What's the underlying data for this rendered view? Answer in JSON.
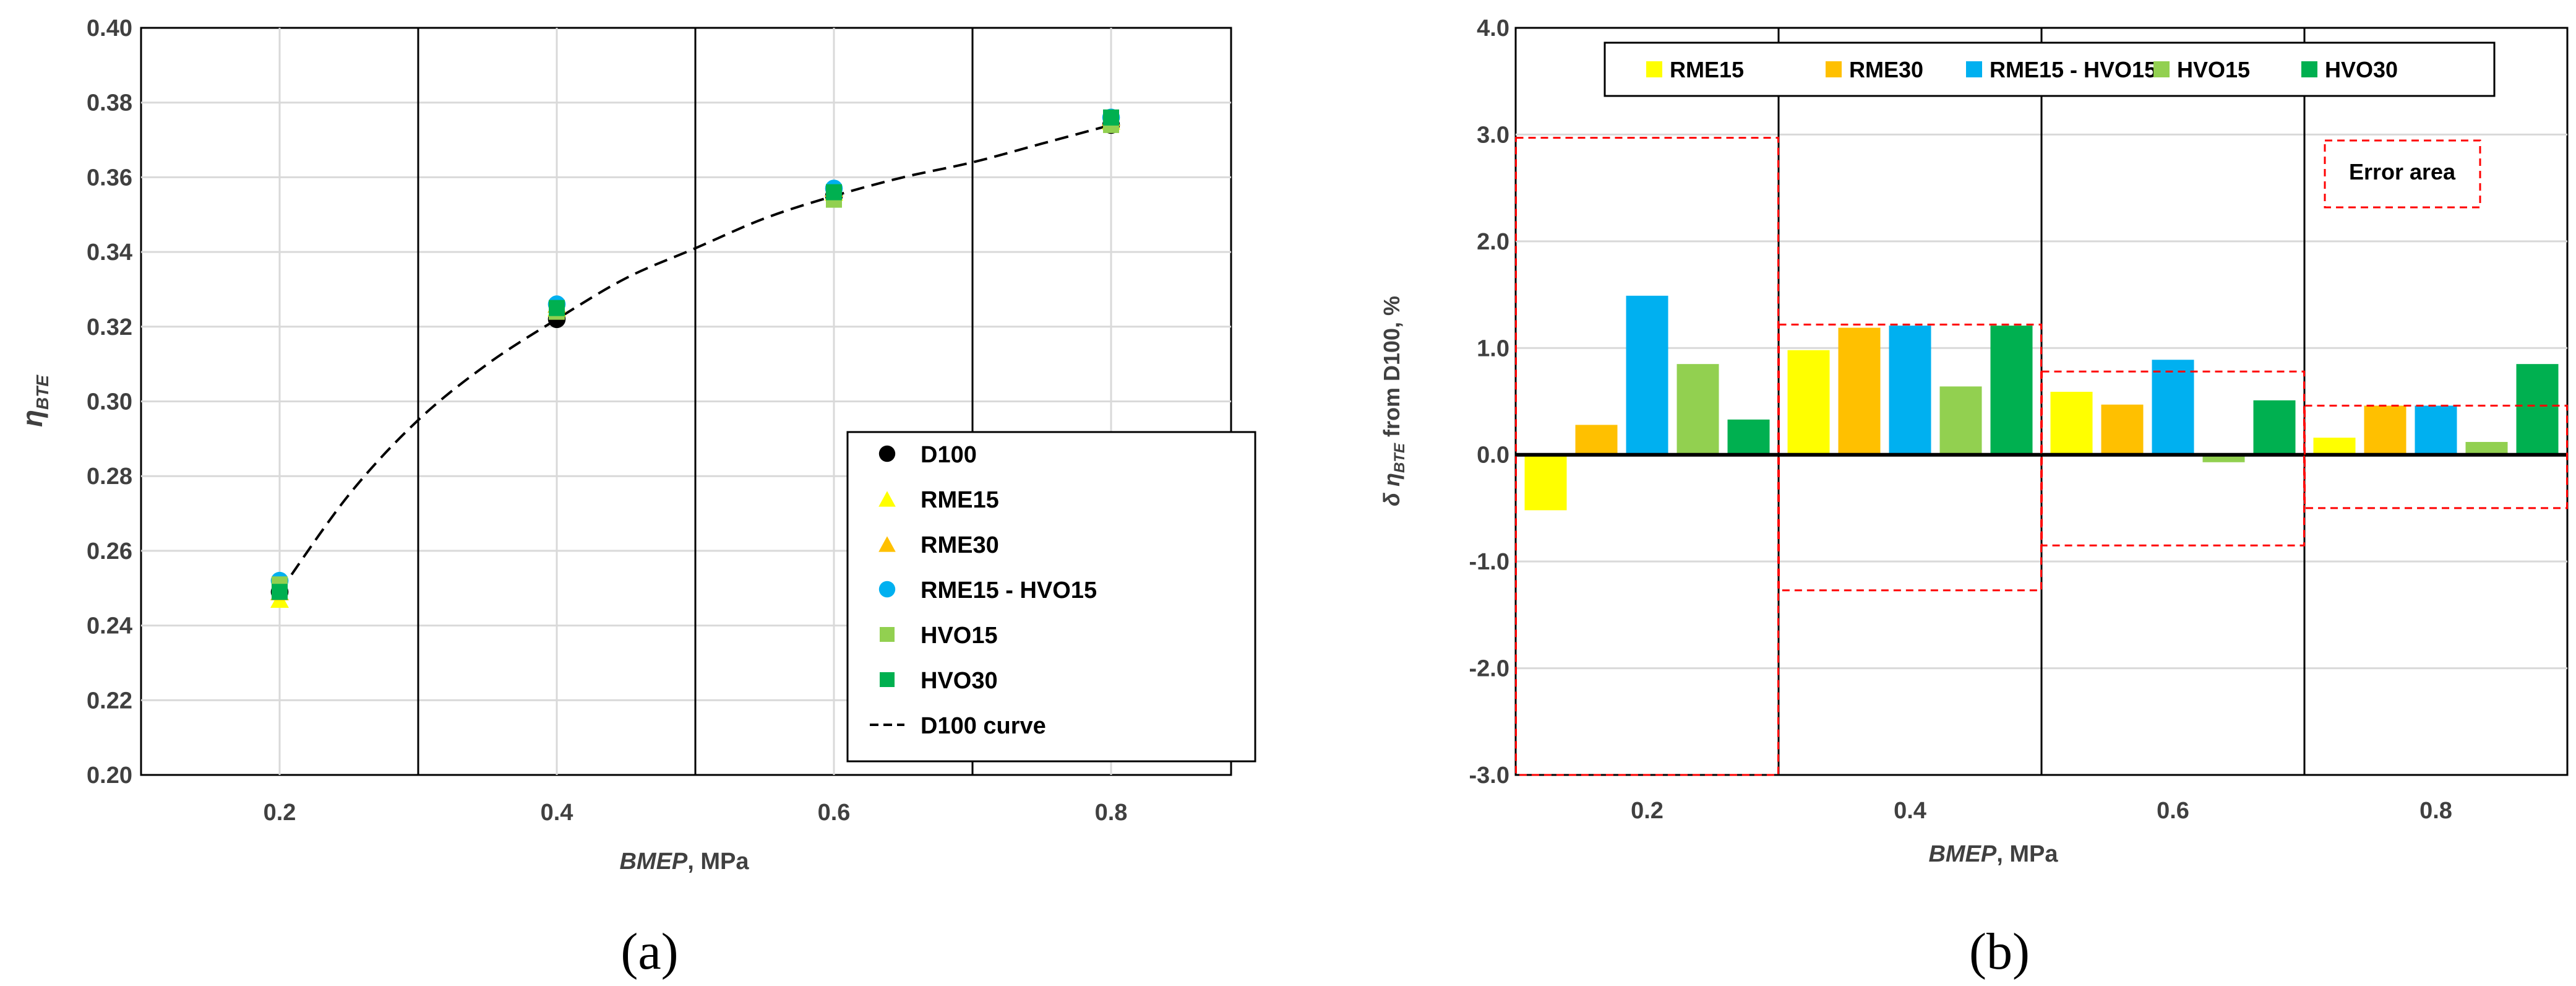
{
  "chart_data": [
    {
      "panel": "(a)",
      "type": "scatter",
      "xlabel_italic": "BMEP",
      "xlabel_rest": ", MPa",
      "ylabel_sym": "η",
      "ylabel_sub": "BTE",
      "xlim": [
        0.1,
        0.8866
      ],
      "ylim": [
        0.2,
        0.4
      ],
      "x_ticks": [
        "0.2",
        "0.4",
        "0.6",
        "0.8"
      ],
      "y_ticks": [
        "0.20",
        "0.22",
        "0.24",
        "0.26",
        "0.28",
        "0.30",
        "0.32",
        "0.34",
        "0.36",
        "0.38",
        "0.40"
      ],
      "series": [
        {
          "name": "D100",
          "marker": "circle",
          "color": "#000000",
          "x": [
            0.2,
            0.4,
            0.6,
            0.8
          ],
          "y": [
            0.249,
            0.322,
            0.355,
            0.374
          ]
        },
        {
          "name": "RME15",
          "marker": "triangle",
          "color": "#FFFF00",
          "x": [
            0.2,
            0.4,
            0.6,
            0.8
          ],
          "y": [
            0.247,
            0.325,
            0.356,
            0.375
          ]
        },
        {
          "name": "RME30",
          "marker": "triangle",
          "color": "#FFC000",
          "x": [
            0.2,
            0.4,
            0.6,
            0.8
          ],
          "y": [
            0.249,
            0.326,
            0.357,
            0.376
          ]
        },
        {
          "name": "RME15 - HVO15",
          "marker": "circle",
          "color": "#00B0F0",
          "x": [
            0.2,
            0.4,
            0.6,
            0.8
          ],
          "y": [
            0.252,
            0.326,
            0.357,
            0.376
          ]
        },
        {
          "name": "HVO15",
          "marker": "square",
          "color": "#92D050",
          "x": [
            0.2,
            0.4,
            0.6,
            0.8
          ],
          "y": [
            0.251,
            0.324,
            0.354,
            0.374
          ]
        },
        {
          "name": "HVO30",
          "marker": "square",
          "color": "#00B050",
          "x": [
            0.2,
            0.4,
            0.6,
            0.8
          ],
          "y": [
            0.249,
            0.325,
            0.356,
            0.376
          ]
        }
      ],
      "curve": {
        "name": "D100 curve",
        "style": "dashed",
        "color": "#000000",
        "x": [
          0.2,
          0.25,
          0.3,
          0.35,
          0.4,
          0.45,
          0.5,
          0.55,
          0.6,
          0.65,
          0.7,
          0.75,
          0.8
        ],
        "y": [
          0.249,
          0.275,
          0.295,
          0.31,
          0.322,
          0.333,
          0.341,
          0.349,
          0.355,
          0.36,
          0.364,
          0.369,
          0.374
        ]
      },
      "legend_position": "bottom-right",
      "grid": true
    },
    {
      "panel": "(b)",
      "type": "bar",
      "xlabel_italic": "BMEP",
      "xlabel_rest": ", MPa",
      "ylabel_prefix": "δ η",
      "ylabel_sub": "BTE",
      "ylabel_suffix": " from D100, %",
      "ylim": [
        -3.0,
        4.0
      ],
      "categories": [
        "0.2",
        "0.4",
        "0.6",
        "0.8"
      ],
      "y_ticks": [
        "-3.0",
        "-2.0",
        "-1.0",
        "0.0",
        "1.0",
        "2.0",
        "3.0",
        "4.0"
      ],
      "series": [
        {
          "name": "RME15",
          "color": "#FFFF00",
          "values": [
            -0.52,
            0.98,
            0.59,
            0.16
          ]
        },
        {
          "name": "RME30",
          "color": "#FFC000",
          "values": [
            0.28,
            1.19,
            0.47,
            0.46
          ]
        },
        {
          "name": "RME15 - HVO15",
          "color": "#00B0F0",
          "values": [
            1.49,
            1.21,
            0.89,
            0.46
          ]
        },
        {
          "name": "HVO15",
          "color": "#92D050",
          "values": [
            0.85,
            0.64,
            -0.07,
            0.12
          ]
        },
        {
          "name": "HVO30",
          "color": "#00B050",
          "values": [
            0.33,
            1.21,
            0.51,
            0.85
          ]
        }
      ],
      "error_boxes": [
        {
          "category": "0.2",
          "low": -3.0,
          "high": 2.97
        },
        {
          "category": "0.4",
          "low": -1.27,
          "high": 1.22
        },
        {
          "category": "0.6",
          "low": -0.85,
          "high": 0.78
        },
        {
          "category": "0.8",
          "low": -0.5,
          "high": 0.46
        }
      ],
      "error_annotation": "Error area",
      "legend_position": "top",
      "grid": true
    }
  ]
}
